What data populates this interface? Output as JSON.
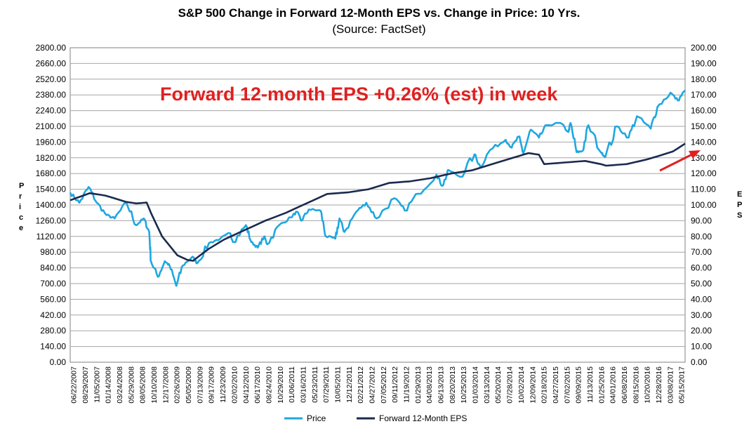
{
  "chart_data": {
    "type": "line",
    "title": "S&P 500 Change in Forward 12-Month EPS vs. Change in Price: 10 Yrs.",
    "subtitle": "(Source: FactSet)",
    "annotation": "Forward 12-month EPS +0.26% (est) in week",
    "ylabel_left": "Price",
    "ylabel_right": "EPS",
    "ylim_left": [
      0,
      2800
    ],
    "ylim_right": [
      0,
      200
    ],
    "yticks_left": [
      "0.00",
      "140.00",
      "280.00",
      "420.00",
      "560.00",
      "700.00",
      "840.00",
      "980.00",
      "1120.00",
      "1260.00",
      "1400.00",
      "1540.00",
      "1680.00",
      "1820.00",
      "1960.00",
      "2100.00",
      "2240.00",
      "2380.00",
      "2520.00",
      "2660.00",
      "2800.00"
    ],
    "yticks_right": [
      "0.00",
      "10.00",
      "20.00",
      "30.00",
      "40.00",
      "50.00",
      "60.00",
      "70.00",
      "80.00",
      "90.00",
      "100.00",
      "110.00",
      "120.00",
      "130.00",
      "140.00",
      "150.00",
      "160.00",
      "170.00",
      "180.00",
      "190.00",
      "200.00"
    ],
    "x_start": "2007-06-22",
    "x_end": "2017-05-26",
    "xticks": [
      "06/22/2007",
      "08/29/2007",
      "11/05/2007",
      "01/14/2008",
      "03/24/2008",
      "05/29/2008",
      "08/05/2008",
      "10/10/2008",
      "12/17/2008",
      "02/26/2009",
      "05/05/2009",
      "07/13/2009",
      "09/17/2009",
      "11/23/2009",
      "02/02/2010",
      "04/12/2010",
      "06/17/2010",
      "08/24/2010",
      "10/29/2010",
      "01/06/2011",
      "03/16/2011",
      "05/23/2011",
      "07/29/2011",
      "10/05/2011",
      "12/12/2011",
      "02/21/2012",
      "04/27/2012",
      "07/05/2012",
      "09/11/2012",
      "11/19/2012",
      "01/29/2013",
      "04/08/2013",
      "06/13/2013",
      "08/20/2013",
      "10/25/2013",
      "01/03/2014",
      "03/13/2014",
      "05/20/2014",
      "07/28/2014",
      "10/02/2014",
      "12/09/2014",
      "02/18/2015",
      "04/27/2015",
      "07/02/2015",
      "09/09/2015",
      "11/13/2015",
      "01/25/2016",
      "04/01/2016",
      "06/08/2016",
      "08/15/2016",
      "10/20/2016",
      "12/28/2016",
      "03/08/2017",
      "05/15/2017"
    ],
    "series": [
      {
        "name": "Price",
        "color": "#1ea7e0",
        "axis": "left",
        "points": [
          [
            "2007-06-22",
            1510
          ],
          [
            "2007-08-15",
            1420
          ],
          [
            "2007-10-09",
            1560
          ],
          [
            "2007-11-26",
            1420
          ],
          [
            "2008-01-22",
            1310
          ],
          [
            "2008-03-10",
            1280
          ],
          [
            "2008-05-19",
            1420
          ],
          [
            "2008-07-15",
            1220
          ],
          [
            "2008-08-29",
            1280
          ],
          [
            "2008-09-30",
            1160
          ],
          [
            "2008-10-10",
            900
          ],
          [
            "2008-11-20",
            760
          ],
          [
            "2008-12-31",
            900
          ],
          [
            "2009-01-28",
            860
          ],
          [
            "2009-03-09",
            680
          ],
          [
            "2009-04-15",
            860
          ],
          [
            "2009-06-12",
            940
          ],
          [
            "2009-07-10",
            880
          ],
          [
            "2009-09-17",
            1060
          ],
          [
            "2009-11-23",
            1100
          ],
          [
            "2010-01-19",
            1150
          ],
          [
            "2010-02-08",
            1070
          ],
          [
            "2010-04-23",
            1220
          ],
          [
            "2010-05-25",
            1070
          ],
          [
            "2010-07-02",
            1020
          ],
          [
            "2010-08-09",
            1120
          ],
          [
            "2010-08-27",
            1050
          ],
          [
            "2010-11-05",
            1220
          ],
          [
            "2011-01-14",
            1290
          ],
          [
            "2011-02-18",
            1340
          ],
          [
            "2011-03-16",
            1260
          ],
          [
            "2011-04-29",
            1360
          ],
          [
            "2011-07-07",
            1350
          ],
          [
            "2011-08-08",
            1120
          ],
          [
            "2011-10-03",
            1100
          ],
          [
            "2011-10-27",
            1280
          ],
          [
            "2011-11-25",
            1160
          ],
          [
            "2012-02-03",
            1340
          ],
          [
            "2012-04-02",
            1420
          ],
          [
            "2012-06-01",
            1280
          ],
          [
            "2012-09-14",
            1460
          ],
          [
            "2012-11-15",
            1350
          ],
          [
            "2013-01-31",
            1500
          ],
          [
            "2013-05-21",
            1670
          ],
          [
            "2013-06-24",
            1570
          ],
          [
            "2013-08-02",
            1710
          ],
          [
            "2013-10-08",
            1650
          ],
          [
            "2013-12-31",
            1850
          ],
          [
            "2014-02-03",
            1740
          ],
          [
            "2014-04-02",
            1890
          ],
          [
            "2014-07-03",
            1980
          ],
          [
            "2014-08-07",
            1910
          ],
          [
            "2014-09-18",
            2010
          ],
          [
            "2014-10-15",
            1860
          ],
          [
            "2014-11-28",
            2070
          ],
          [
            "2015-01-15",
            2000
          ],
          [
            "2015-03-02",
            2110
          ],
          [
            "2015-05-21",
            2130
          ],
          [
            "2015-07-08",
            2050
          ],
          [
            "2015-07-20",
            2130
          ],
          [
            "2015-08-25",
            1870
          ],
          [
            "2015-09-29",
            1880
          ],
          [
            "2015-11-03",
            2110
          ],
          [
            "2016-01-20",
            1860
          ],
          [
            "2016-02-11",
            1830
          ],
          [
            "2016-04-20",
            2100
          ],
          [
            "2016-06-27",
            2000
          ],
          [
            "2016-08-15",
            2190
          ],
          [
            "2016-11-04",
            2080
          ],
          [
            "2016-12-13",
            2270
          ],
          [
            "2017-03-01",
            2400
          ],
          [
            "2017-04-13",
            2330
          ],
          [
            "2017-05-26",
            2420
          ]
        ]
      },
      {
        "name": "Forward 12-Month EPS",
        "color": "#1b2a4e",
        "axis": "right",
        "points": [
          [
            "2007-06-22",
            103
          ],
          [
            "2007-10-15",
            107.5
          ],
          [
            "2008-01-15",
            106
          ],
          [
            "2008-05-15",
            102
          ],
          [
            "2008-07-15",
            101
          ],
          [
            "2008-09-15",
            101.5
          ],
          [
            "2008-10-10",
            95
          ],
          [
            "2008-12-15",
            80
          ],
          [
            "2009-03-15",
            68
          ],
          [
            "2009-05-15",
            65
          ],
          [
            "2009-06-15",
            64.5
          ],
          [
            "2009-09-15",
            72
          ],
          [
            "2009-12-15",
            78
          ],
          [
            "2010-04-15",
            84
          ],
          [
            "2010-08-15",
            90
          ],
          [
            "2010-12-15",
            95
          ],
          [
            "2011-04-15",
            101
          ],
          [
            "2011-08-15",
            107
          ],
          [
            "2011-12-15",
            108
          ],
          [
            "2012-04-15",
            110
          ],
          [
            "2012-08-15",
            114
          ],
          [
            "2012-12-15",
            115
          ],
          [
            "2013-04-15",
            117
          ],
          [
            "2013-08-15",
            120
          ],
          [
            "2013-12-15",
            122
          ],
          [
            "2014-04-15",
            126
          ],
          [
            "2014-08-15",
            130
          ],
          [
            "2014-11-15",
            133
          ],
          [
            "2015-01-15",
            132
          ],
          [
            "2015-02-15",
            126
          ],
          [
            "2015-06-15",
            127
          ],
          [
            "2015-10-15",
            128
          ],
          [
            "2016-01-15",
            126
          ],
          [
            "2016-02-15",
            125
          ],
          [
            "2016-06-15",
            126
          ],
          [
            "2016-10-15",
            129
          ],
          [
            "2017-01-15",
            132
          ],
          [
            "2017-03-15",
            134
          ],
          [
            "2017-05-26",
            139
          ]
        ]
      }
    ],
    "legend": [
      "Price",
      "Forward 12-Month EPS"
    ],
    "legend_position": "bottom",
    "grid": true,
    "annotation_color": "#e02020"
  }
}
